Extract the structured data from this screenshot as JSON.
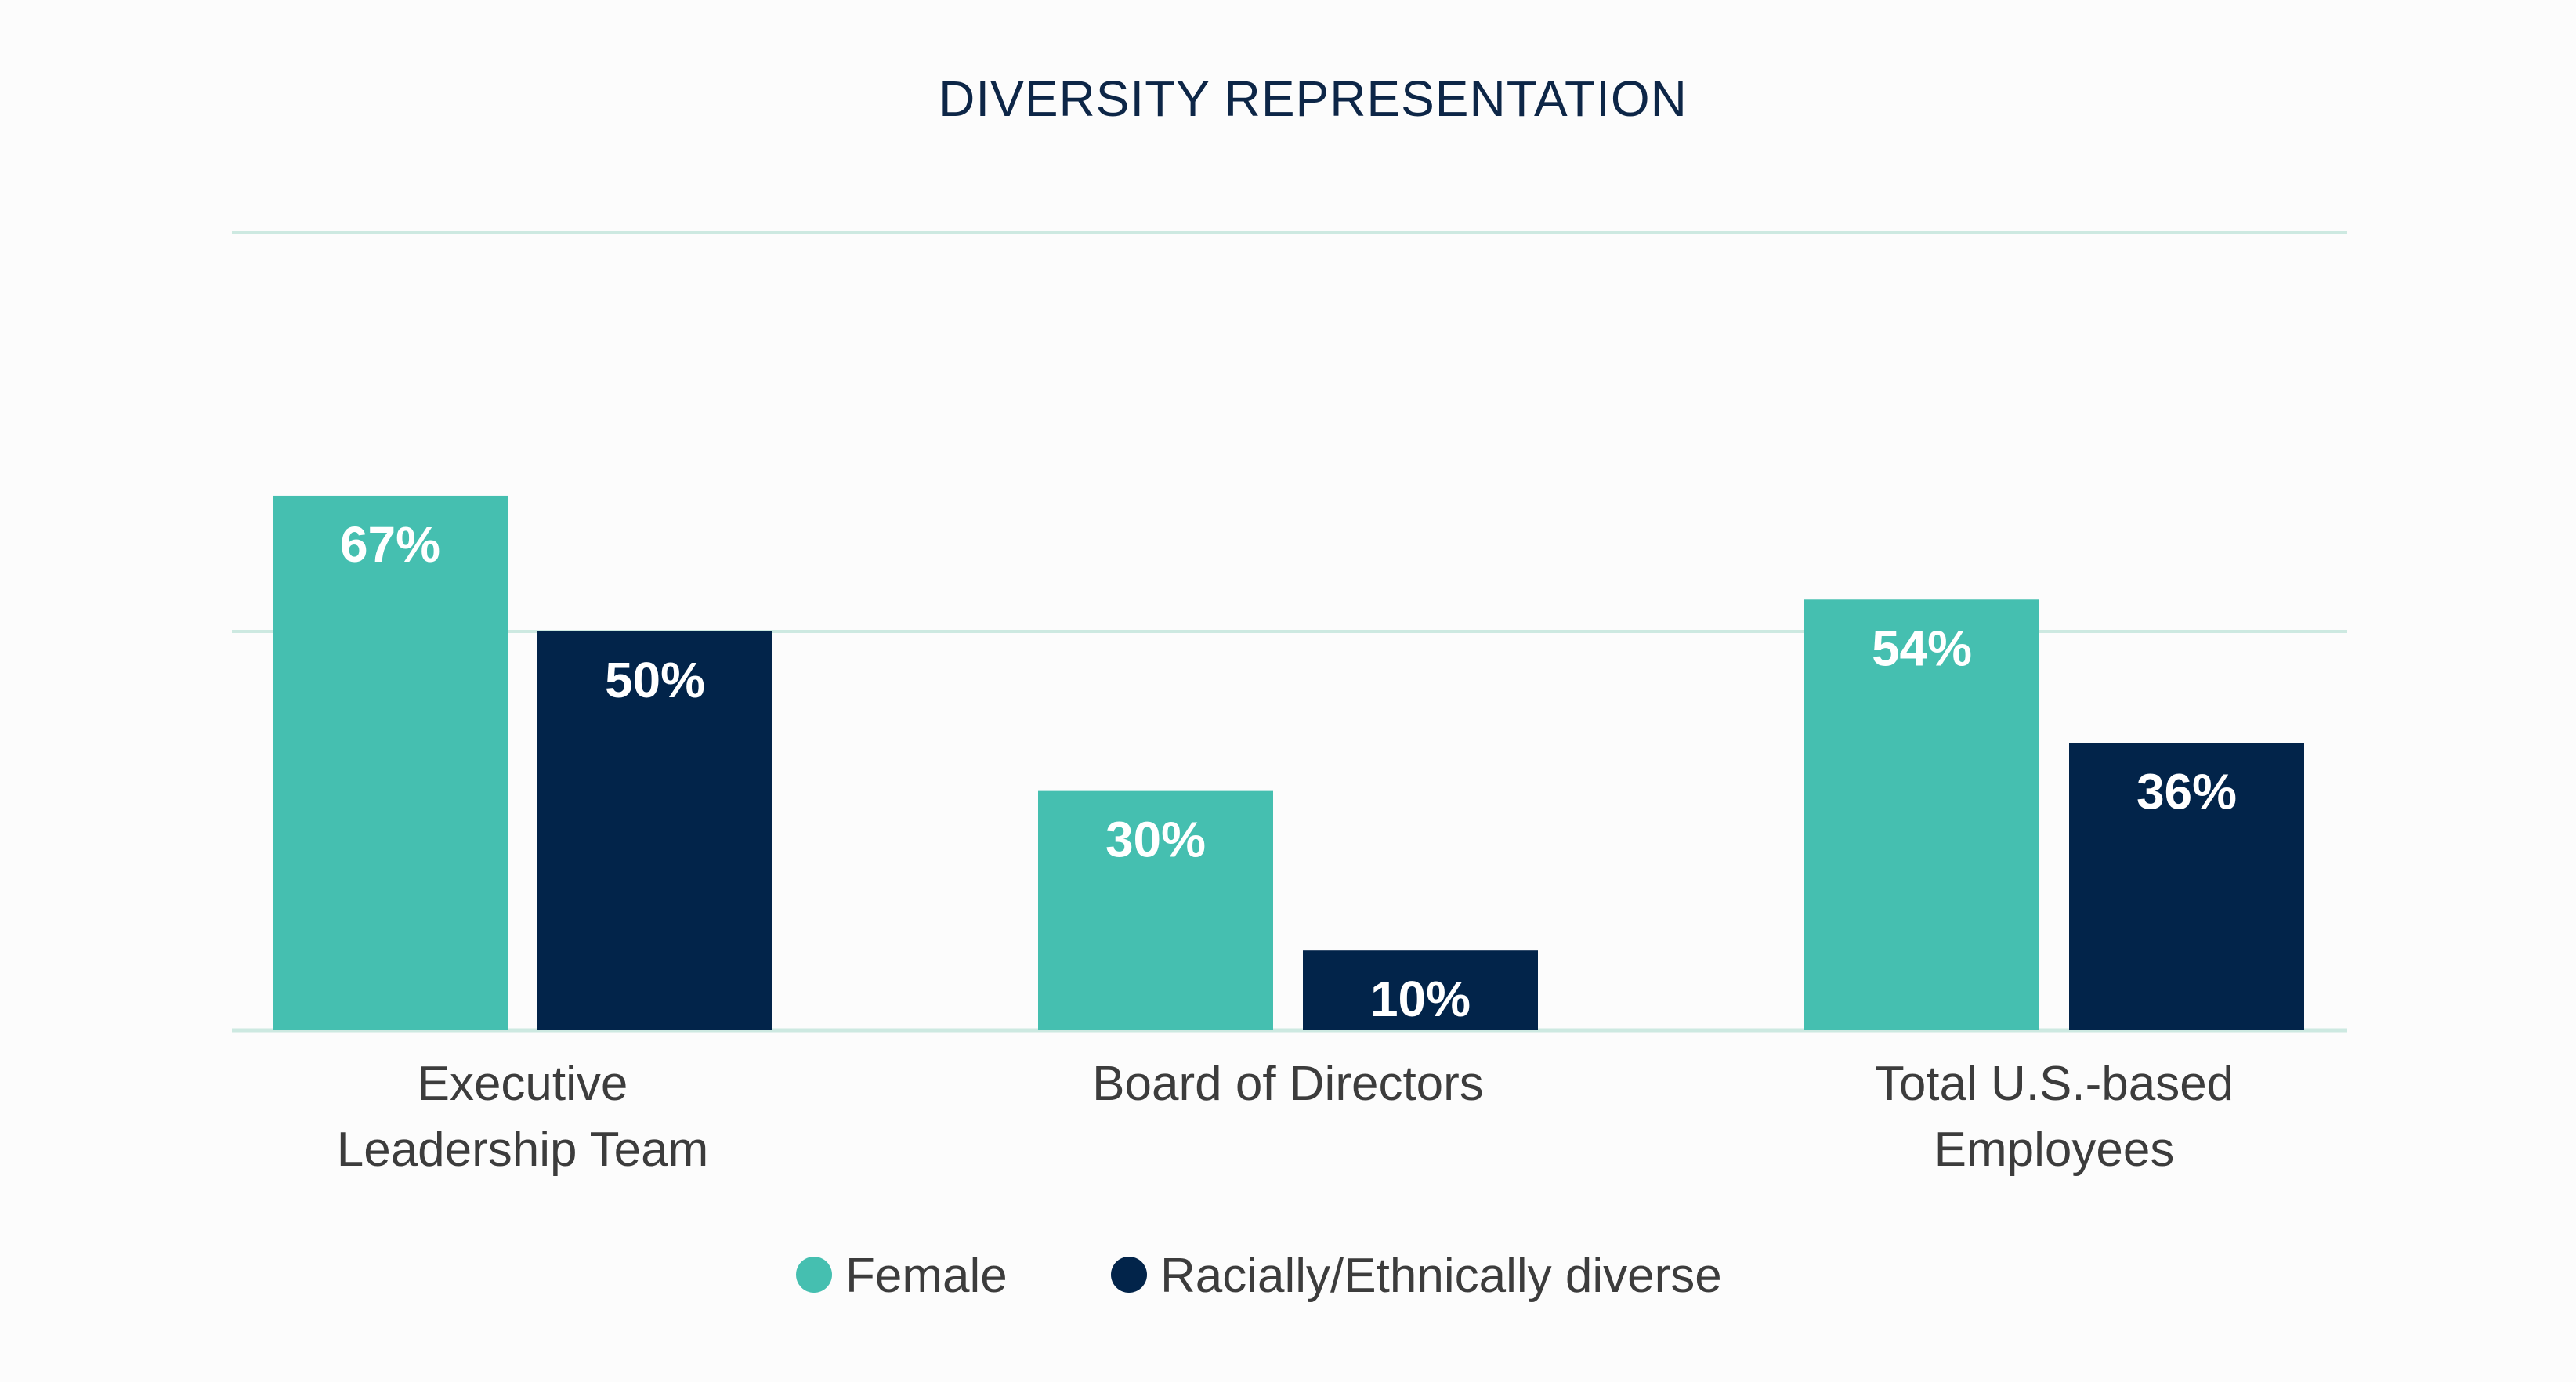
{
  "chart_data": {
    "type": "bar",
    "title": "DIVERSITY REPRESENTATION",
    "categories": [
      [
        "Executive",
        "Leadership Team"
      ],
      [
        "Board of Directors"
      ],
      [
        "Total U.S.-based",
        "Employees"
      ]
    ],
    "series": [
      {
        "name": "Female",
        "color": "#45bfb0",
        "values": [
          67,
          30,
          54
        ],
        "labels": [
          "67%",
          "30%",
          "54%"
        ]
      },
      {
        "name": "Racially/Ethnically diverse",
        "color": "#02244a",
        "values": [
          50,
          10,
          36
        ],
        "labels": [
          "50%",
          "10%",
          "36%"
        ]
      }
    ],
    "ylim": [
      0,
      100
    ],
    "gridlines": [
      0,
      50,
      100
    ],
    "legend_position": "bottom-center",
    "xlabel": "",
    "ylabel": ""
  }
}
